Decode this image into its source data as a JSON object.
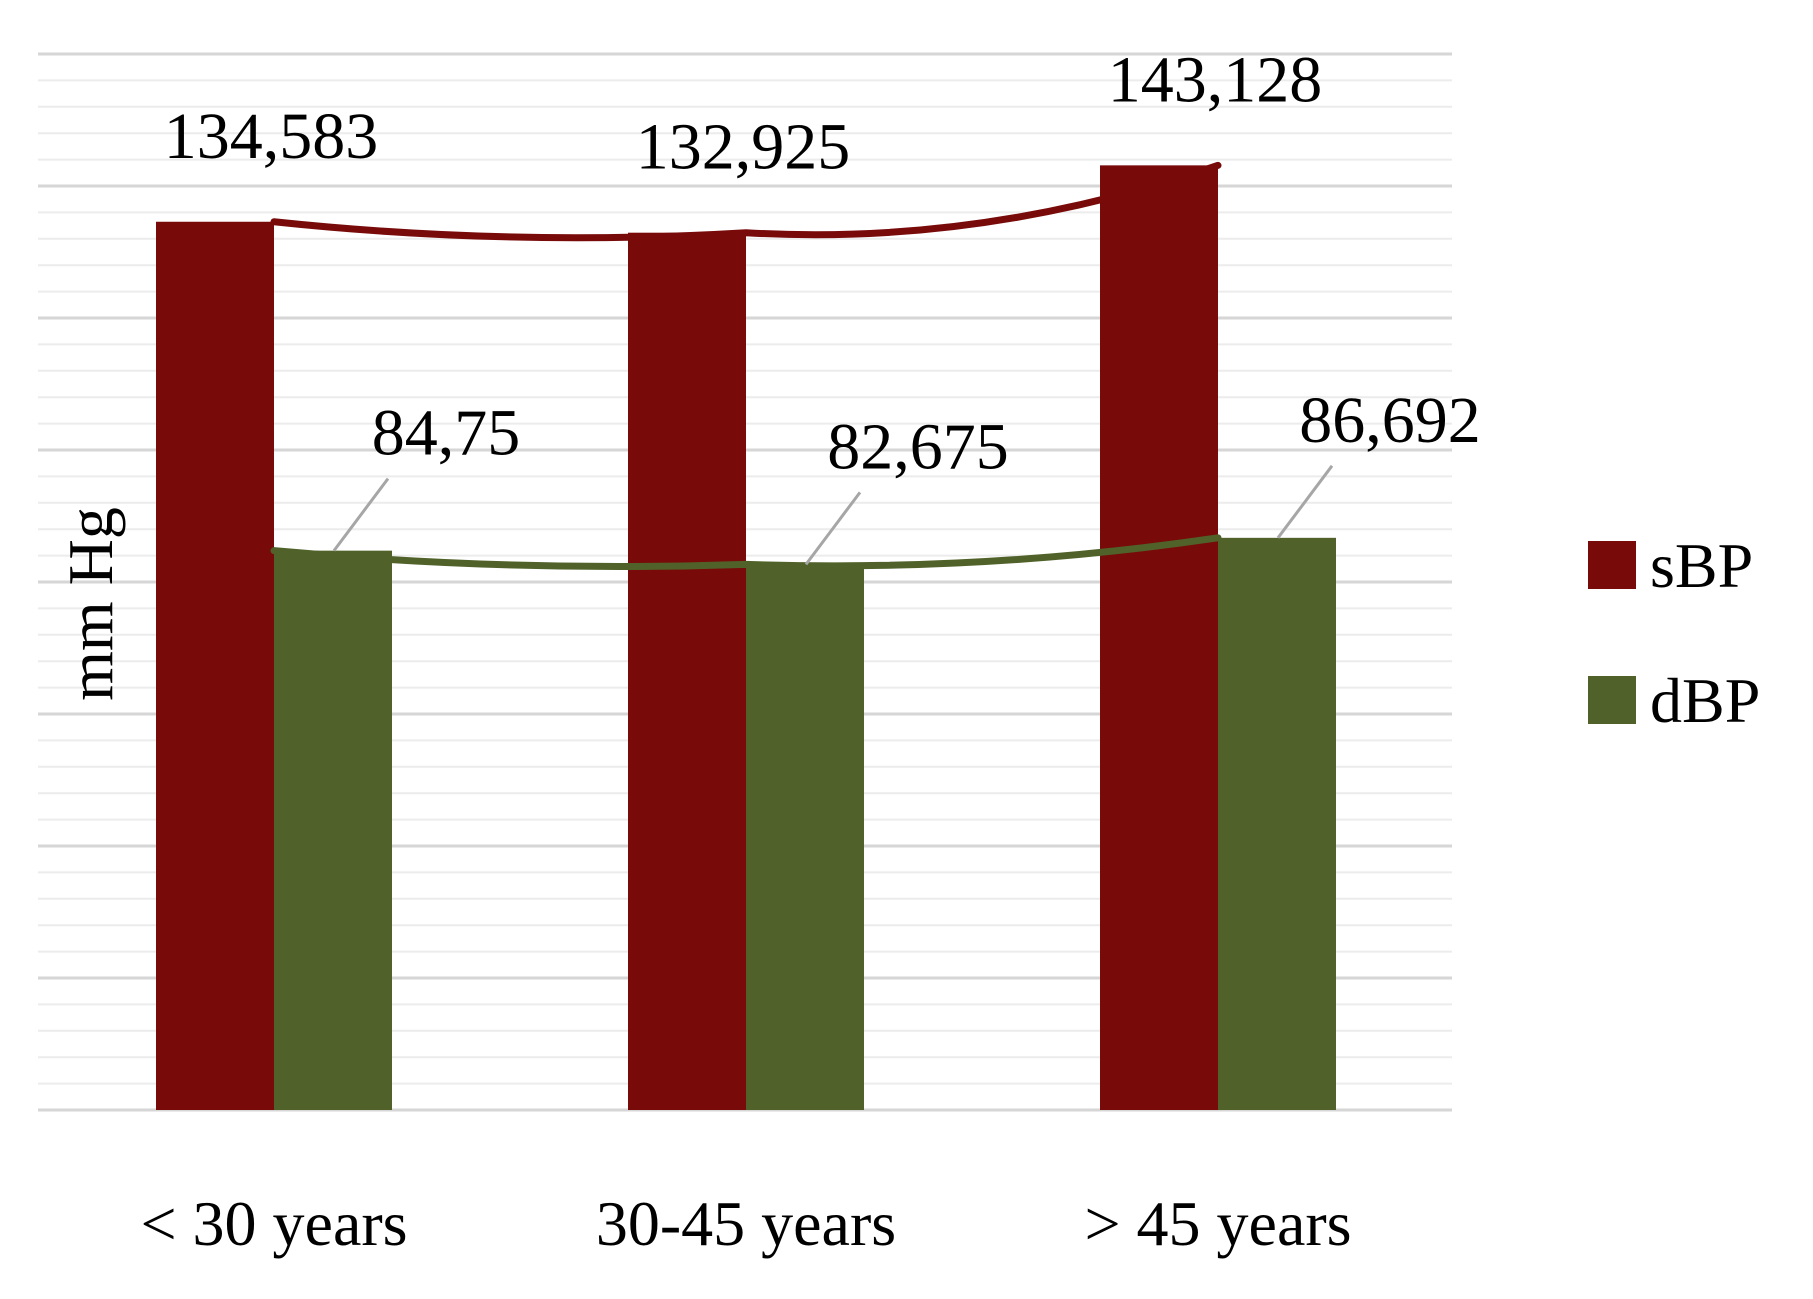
{
  "chart_data": {
    "type": "bar",
    "title": "",
    "xlabel": "",
    "ylabel": "mm Hg",
    "ylim": [
      0,
      160
    ],
    "grid": true,
    "legend_position": "right",
    "categories": [
      "< 30 years",
      "30-45 years",
      "> 45 years"
    ],
    "series": [
      {
        "name": "sBP",
        "values": [
          134.583,
          132.925,
          143.128
        ],
        "labels": [
          "134,583",
          "132,925",
          "143,128"
        ],
        "color": "#780A0A",
        "trendline": true
      },
      {
        "name": "dBP",
        "values": [
          84.75,
          82.675,
          86.692
        ],
        "labels": [
          "84,75",
          "82,675",
          "86,692"
        ],
        "color": "#50622A",
        "trendline": true
      }
    ]
  }
}
